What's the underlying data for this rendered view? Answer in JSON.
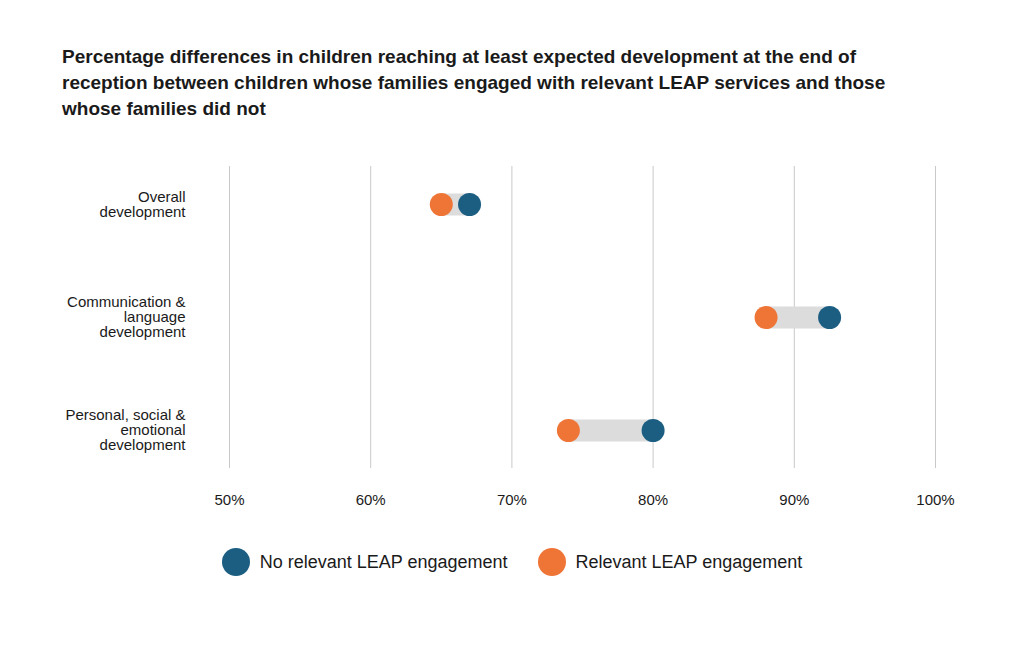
{
  "chart_data": {
    "type": "dumbbell",
    "title": "Percentage differences in children reaching at least expected development at the end of reception between children whose families engaged with relevant LEAP services and those whose families did not",
    "categories": [
      "Overall development",
      "Communication & language development",
      "Personal, social & emotional development"
    ],
    "series": [
      {
        "name": "No relevant LEAP engagement",
        "color": "#1b5e82",
        "values": [
          67,
          92.5,
          80
        ]
      },
      {
        "name": "Relevant LEAP engagement",
        "color": "#ef7537",
        "values": [
          65,
          88,
          74
        ]
      }
    ],
    "orientation": "horizontal",
    "xlim": [
      50,
      100
    ],
    "xticks": [
      {
        "value": 50,
        "label": "50%"
      },
      {
        "value": 60,
        "label": "60%"
      },
      {
        "value": 70,
        "label": "70%"
      },
      {
        "value": 80,
        "label": "80%"
      },
      {
        "value": 90,
        "label": "90%"
      },
      {
        "value": 100,
        "label": "100%"
      }
    ],
    "grid": true,
    "legend": "bottom"
  }
}
